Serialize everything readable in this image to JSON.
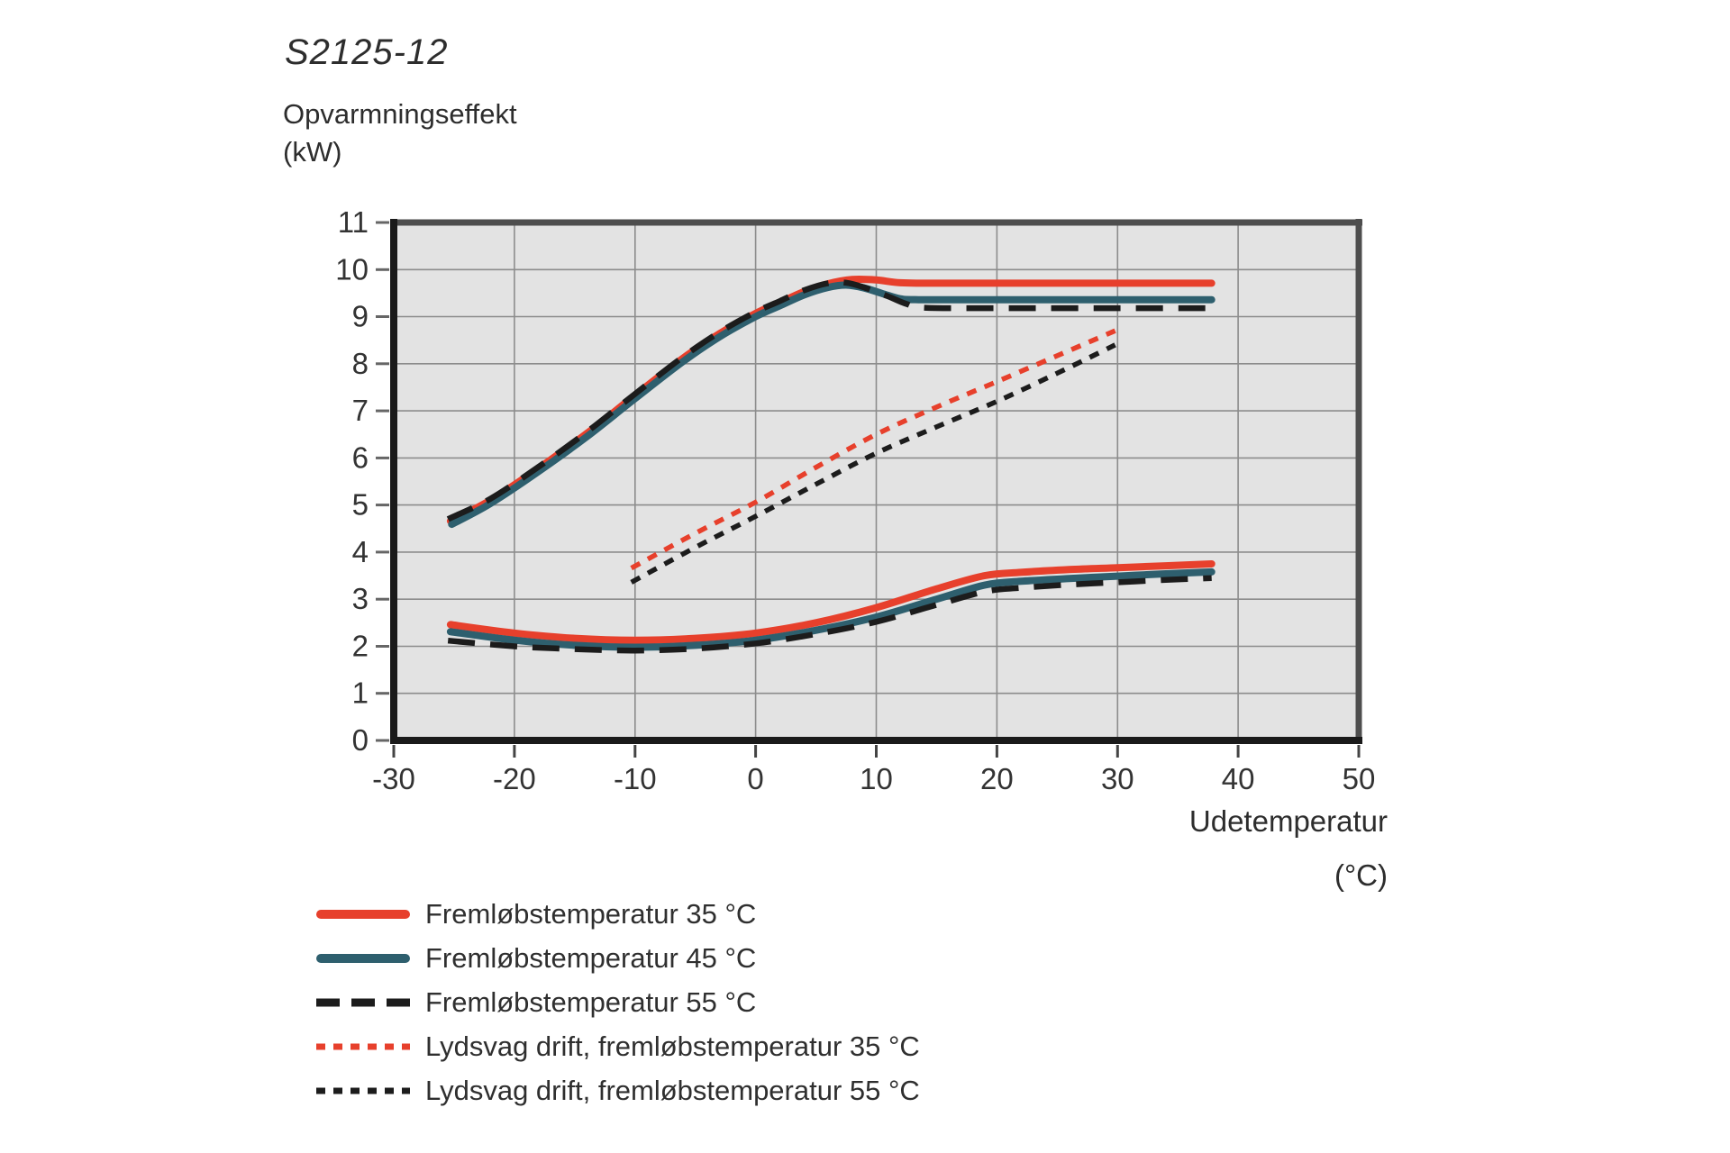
{
  "chart_data": {
    "type": "line",
    "title": "S2125-12",
    "ylabel": "Opvarmningseffekt",
    "ylabel_unit": "(kW)",
    "xlabel": "Udetemperatur",
    "xlabel_unit": "(°C)",
    "xlim": [
      -30,
      50
    ],
    "ylim": [
      0,
      11
    ],
    "x_ticks": [
      -30,
      -20,
      -10,
      0,
      10,
      20,
      30,
      40,
      50
    ],
    "y_ticks": [
      0,
      1,
      2,
      3,
      4,
      5,
      6,
      7,
      8,
      9,
      10,
      11
    ],
    "grid": true,
    "legend_position": "bottom-left",
    "colors": {
      "red": "#e7402c",
      "teal": "#2e5f6e",
      "black": "#1c1c1c",
      "plot_background": "#e3e3e3",
      "gridline": "#8c8c8c",
      "axis": "#1a1a1a",
      "outer_border": "#4e4e4e"
    },
    "series": [
      {
        "name": "Fremløbstemperatur 35 °C",
        "color": "#e7402c",
        "style": "solid",
        "segments": [
          [
            [
              -25.3,
              4.66
            ],
            [
              -22,
              5.1
            ],
            [
              -18,
              5.78
            ],
            [
              -14,
              6.52
            ],
            [
              -10,
              7.33
            ],
            [
              -6,
              8.12
            ],
            [
              -3,
              8.64
            ],
            [
              0,
              9.07
            ],
            [
              2,
              9.3
            ],
            [
              4,
              9.53
            ],
            [
              6,
              9.7
            ],
            [
              8,
              9.79
            ],
            [
              10,
              9.78
            ],
            [
              12,
              9.72
            ],
            [
              15,
              9.71
            ],
            [
              25,
              9.71
            ],
            [
              37.8,
              9.71
            ]
          ],
          [
            [
              -25.3,
              2.46
            ],
            [
              -20,
              2.28
            ],
            [
              -15,
              2.17
            ],
            [
              -10,
              2.13
            ],
            [
              -5,
              2.17
            ],
            [
              0,
              2.28
            ],
            [
              5,
              2.5
            ],
            [
              10,
              2.82
            ],
            [
              15,
              3.22
            ],
            [
              19,
              3.5
            ],
            [
              22,
              3.57
            ],
            [
              26,
              3.63
            ],
            [
              30,
              3.67
            ],
            [
              34,
              3.71
            ],
            [
              37.8,
              3.75
            ]
          ]
        ]
      },
      {
        "name": "Fremløbstemperatur 45 °C",
        "color": "#2e5f6e",
        "style": "solid",
        "segments": [
          [
            [
              -25.2,
              4.59
            ],
            [
              -22,
              5.03
            ],
            [
              -18,
              5.71
            ],
            [
              -14,
              6.45
            ],
            [
              -10,
              7.26
            ],
            [
              -6,
              8.05
            ],
            [
              -3,
              8.57
            ],
            [
              0,
              9.0
            ],
            [
              2,
              9.23
            ],
            [
              4,
              9.46
            ],
            [
              6,
              9.62
            ],
            [
              7.5,
              9.67
            ],
            [
              9,
              9.61
            ],
            [
              10.5,
              9.49
            ],
            [
              12,
              9.38
            ],
            [
              13.5,
              9.36
            ],
            [
              20,
              9.36
            ],
            [
              30,
              9.36
            ],
            [
              37.8,
              9.36
            ]
          ],
          [
            [
              -25.3,
              2.31
            ],
            [
              -20,
              2.13
            ],
            [
              -15,
              2.02
            ],
            [
              -10,
              1.98
            ],
            [
              -5,
              2.02
            ],
            [
              0,
              2.13
            ],
            [
              5,
              2.34
            ],
            [
              10,
              2.62
            ],
            [
              15,
              3.0
            ],
            [
              19,
              3.3
            ],
            [
              22,
              3.38
            ],
            [
              26,
              3.44
            ],
            [
              30,
              3.49
            ],
            [
              34,
              3.54
            ],
            [
              37.8,
              3.58
            ]
          ]
        ]
      },
      {
        "name": "Fremløbstemperatur 55 °C",
        "color": "#1c1c1c",
        "style": "long-dash",
        "segments": [
          [
            [
              -25.5,
              4.7
            ],
            [
              -22,
              5.13
            ],
            [
              -18,
              5.81
            ],
            [
              -14,
              6.55
            ],
            [
              -10,
              7.36
            ],
            [
              -6,
              8.15
            ],
            [
              -3,
              8.67
            ],
            [
              0,
              9.1
            ],
            [
              2,
              9.33
            ],
            [
              4,
              9.56
            ],
            [
              6,
              9.71
            ],
            [
              7.5,
              9.72
            ],
            [
              9,
              9.62
            ],
            [
              11,
              9.43
            ],
            [
              12.5,
              9.27
            ],
            [
              14,
              9.19
            ],
            [
              20,
              9.18
            ],
            [
              30,
              9.18
            ],
            [
              37.8,
              9.18
            ]
          ],
          [
            [
              -25.5,
              2.12
            ],
            [
              -20,
              2.0
            ],
            [
              -15,
              1.94
            ],
            [
              -10,
              1.91
            ],
            [
              -5,
              1.95
            ],
            [
              0,
              2.06
            ],
            [
              5,
              2.26
            ],
            [
              10,
              2.52
            ],
            [
              15,
              2.88
            ],
            [
              19,
              3.16
            ],
            [
              22,
              3.24
            ],
            [
              26,
              3.31
            ],
            [
              30,
              3.36
            ],
            [
              34,
              3.41
            ],
            [
              37.8,
              3.45
            ]
          ]
        ]
      },
      {
        "name": "Lydsvag drift, fremløbstemperatur 35 °C",
        "color": "#e7402c",
        "style": "dotted",
        "segments": [
          [
            [
              -10.3,
              3.66
            ],
            [
              -5,
              4.4
            ],
            [
              0,
              5.06
            ],
            [
              5,
              5.8
            ],
            [
              10,
              6.5
            ],
            [
              15,
              7.08
            ],
            [
              20,
              7.62
            ],
            [
              25,
              8.17
            ],
            [
              29.8,
              8.7
            ]
          ]
        ]
      },
      {
        "name": "Lydsvag drift, fremløbstemperatur 55 °C",
        "color": "#1c1c1c",
        "style": "dotted",
        "segments": [
          [
            [
              -10.3,
              3.36
            ],
            [
              -5,
              4.1
            ],
            [
              0,
              4.76
            ],
            [
              5,
              5.44
            ],
            [
              10,
              6.1
            ],
            [
              15,
              6.66
            ],
            [
              20,
              7.2
            ],
            [
              25,
              7.8
            ],
            [
              29.8,
              8.4
            ]
          ]
        ]
      }
    ]
  }
}
